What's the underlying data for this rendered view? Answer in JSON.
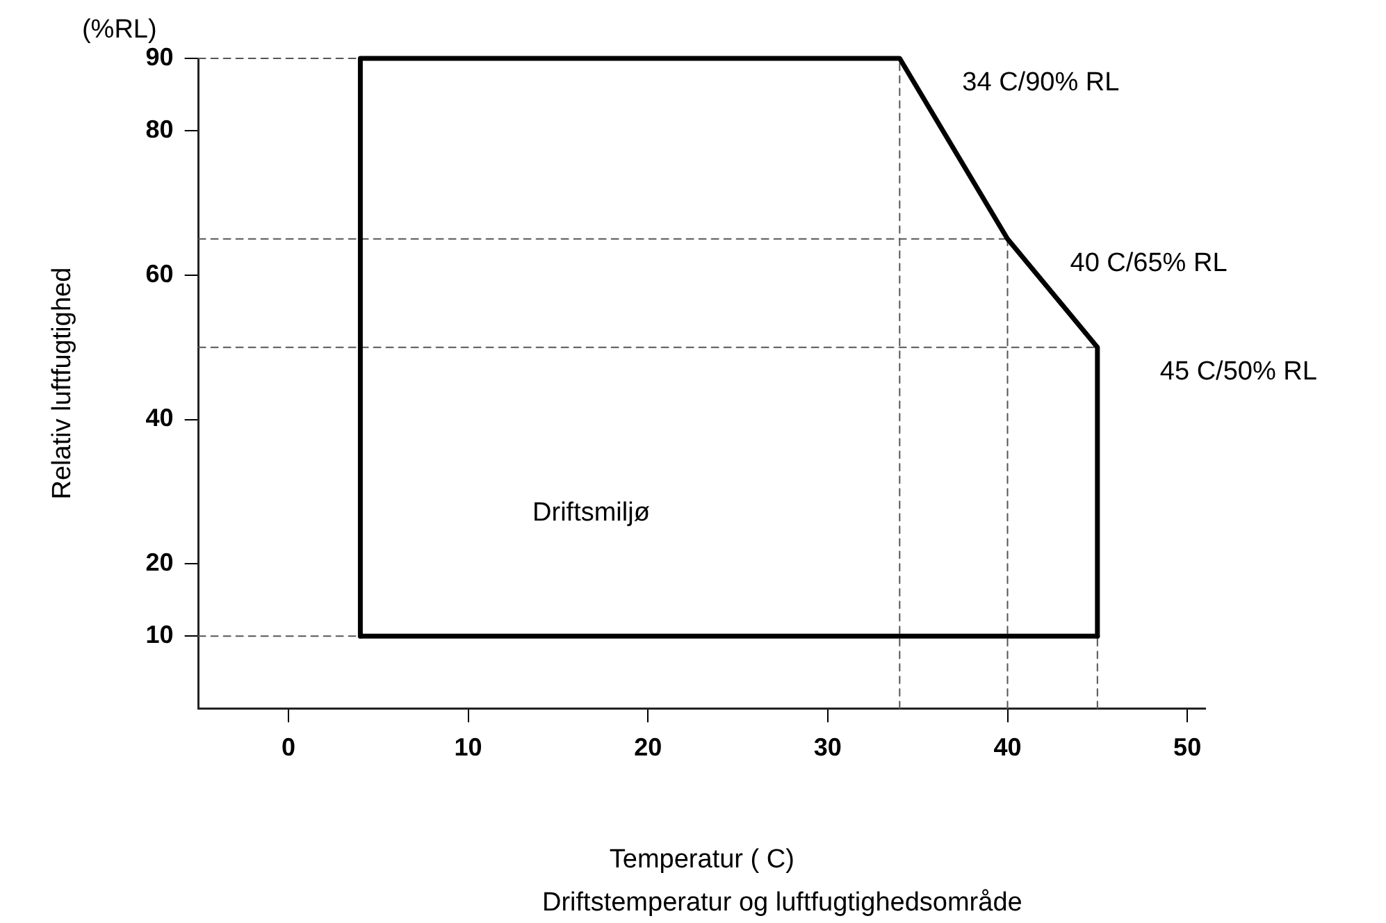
{
  "chart_data": {
    "type": "line",
    "ylabel": "Relativ luftfugtighed",
    "xlabel": "Temperatur ( C)",
    "xlim": [
      -5,
      51
    ],
    "xticks": [
      0,
      10,
      20,
      30,
      40,
      50
    ],
    "ylim": [
      0,
      90
    ],
    "yticks": [
      10,
      20,
      40,
      60,
      80,
      90
    ],
    "grid": false,
    "legend": false,
    "marker": "none",
    "series": [
      {
        "color": "#000000",
        "line_style": "solid",
        "x": [
          4,
          4,
          34,
          40,
          45,
          45
        ],
        "values": [
          10,
          90,
          90,
          65,
          50,
          10
        ]
      },
      {
        "color": "#000000",
        "line_style": "solid",
        "x": [
          4,
          45
        ],
        "values": [
          10,
          10
        ]
      },
      {
        "color": "#555555",
        "line_style": "dashed",
        "x": [
          -5,
          4
        ],
        "values": [
          90,
          90
        ]
      },
      {
        "color": "#555555",
        "line_style": "dashed",
        "x": [
          -5,
          40
        ],
        "values": [
          65,
          65
        ]
      },
      {
        "color": "#555555",
        "line_style": "dashed",
        "x": [
          -5,
          45
        ],
        "values": [
          50,
          50
        ]
      },
      {
        "color": "#555555",
        "line_style": "dashed",
        "x": [
          -5,
          4
        ],
        "values": [
          10,
          10
        ]
      },
      {
        "color": "#555555",
        "line_style": "dashed",
        "x": [
          34,
          34
        ],
        "values": [
          0,
          90
        ]
      },
      {
        "color": "#555555",
        "line_style": "dashed",
        "x": [
          40,
          40
        ],
        "values": [
          0,
          65
        ]
      },
      {
        "color": "#555555",
        "line_style": "dashed",
        "x": [
          45,
          45
        ],
        "values": [
          0,
          10
        ]
      }
    ],
    "annotations": [
      "(%RL)",
      "Driftstemperatur og luftfugtighedsområde",
      {
        "text": "34 C/90% RL",
        "x": 34,
        "y": 90
      },
      {
        "text": "40 C/65% RL",
        "x": 40,
        "y": 65
      },
      {
        "text": "45 C/50% RL",
        "x": 45,
        "y": 50
      },
      "Driftsmiljø"
    ]
  }
}
